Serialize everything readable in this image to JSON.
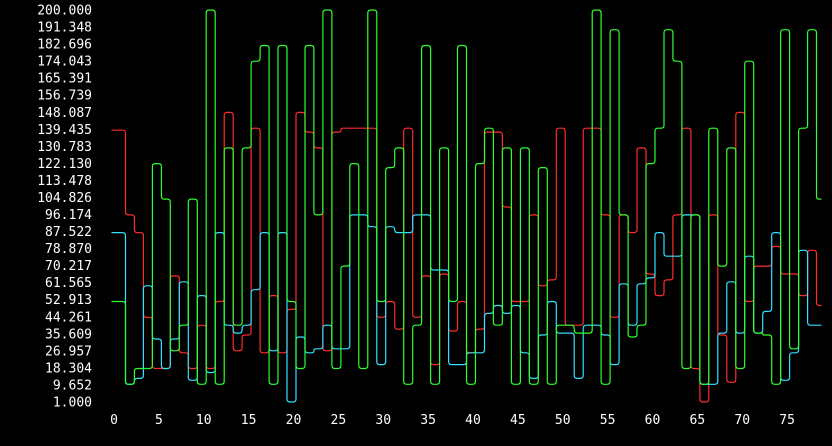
{
  "chart_data": {
    "type": "line",
    "title": "",
    "xlabel": "",
    "ylabel": "",
    "xlim": [
      0,
      80
    ],
    "ylim": [
      1,
      200
    ],
    "background": "#000000",
    "text_color": "#ffffff",
    "grid": false,
    "y_ticks": [
      "1.000",
      "9.652",
      "18.304",
      "26.957",
      "35.609",
      "44.261",
      "52.913",
      "61.565",
      "70.217",
      "78.870",
      "87.522",
      "96.174",
      "104.826",
      "113.478",
      "122.130",
      "130.783",
      "139.435",
      "148.087",
      "156.739",
      "165.391",
      "174.043",
      "182.696",
      "191.348",
      "200.000"
    ],
    "x_ticks": [
      "0",
      "5",
      "10",
      "15",
      "20",
      "25",
      "30",
      "35",
      "40",
      "45",
      "50",
      "55",
      "60",
      "65",
      "70",
      "75"
    ],
    "x": [
      0,
      1,
      2,
      3,
      4,
      5,
      6,
      7,
      8,
      9,
      10,
      11,
      12,
      13,
      14,
      15,
      16,
      17,
      18,
      19,
      20,
      21,
      22,
      23,
      24,
      25,
      26,
      27,
      28,
      29,
      30,
      31,
      32,
      33,
      34,
      35,
      36,
      37,
      38,
      39,
      40,
      41,
      42,
      43,
      44,
      45,
      46,
      47,
      48,
      49,
      50,
      51,
      52,
      53,
      54,
      55,
      56,
      57,
      58,
      59,
      60,
      61,
      62,
      63,
      64,
      65,
      66,
      67,
      68,
      69,
      70,
      71,
      72,
      73,
      74,
      75,
      76,
      77,
      78,
      79
    ],
    "series": [
      {
        "color": "#ff2b2b",
        "values": [
          139,
          139,
          96,
          87,
          44,
          18,
          18,
          65,
          26,
          18,
          40,
          18,
          52,
          148,
          27,
          35,
          140,
          26,
          55,
          26,
          48,
          148,
          138,
          130,
          27,
          138,
          140,
          140,
          140,
          140,
          44,
          52,
          38,
          140,
          44,
          65,
          20,
          66,
          37,
          52,
          26,
          38,
          138,
          138,
          100,
          52,
          52,
          96,
          60,
          63,
          140,
          40,
          40,
          140,
          140,
          96,
          44,
          96,
          87,
          130,
          66,
          55,
          63,
          96,
          140,
          18,
          1,
          96,
          35,
          11,
          148,
          52,
          70,
          70,
          80,
          66,
          66,
          55,
          78,
          50
        ]
      },
      {
        "color": "#33e0ff",
        "values": [
          87,
          87,
          10,
          13,
          60,
          33,
          18,
          33,
          62,
          12,
          55,
          16,
          87,
          40,
          36,
          40,
          58,
          87,
          27,
          87,
          1,
          34,
          26,
          28,
          40,
          28,
          28,
          96,
          96,
          90,
          20,
          90,
          87,
          87,
          96,
          96,
          68,
          68,
          20,
          20,
          26,
          26,
          46,
          50,
          46,
          50,
          26,
          13,
          35,
          52,
          36,
          36,
          13,
          40,
          40,
          35,
          20,
          61,
          40,
          61,
          64,
          87,
          75,
          75,
          96,
          96,
          10,
          10,
          36,
          62,
          36,
          75,
          36,
          47,
          87,
          12,
          26,
          78,
          40,
          40
        ]
      },
      {
        "color": "#2eff2e",
        "values": [
          52,
          52,
          10,
          18,
          18,
          122,
          104,
          27,
          40,
          104,
          10,
          200,
          10,
          130,
          40,
          130,
          174,
          182,
          10,
          182,
          52,
          18,
          182,
          96,
          200,
          18,
          70,
          122,
          18,
          200,
          52,
          120,
          130,
          10,
          40,
          182,
          10,
          130,
          52,
          182,
          10,
          122,
          140,
          40,
          130,
          10,
          130,
          10,
          120,
          10,
          40,
          40,
          36,
          36,
          200,
          10,
          190,
          96,
          34,
          40,
          122,
          140,
          190,
          174,
          18,
          96,
          10,
          140,
          70,
          130,
          18,
          174,
          36,
          35,
          10,
          190,
          28,
          140,
          190,
          104
        ]
      }
    ]
  }
}
